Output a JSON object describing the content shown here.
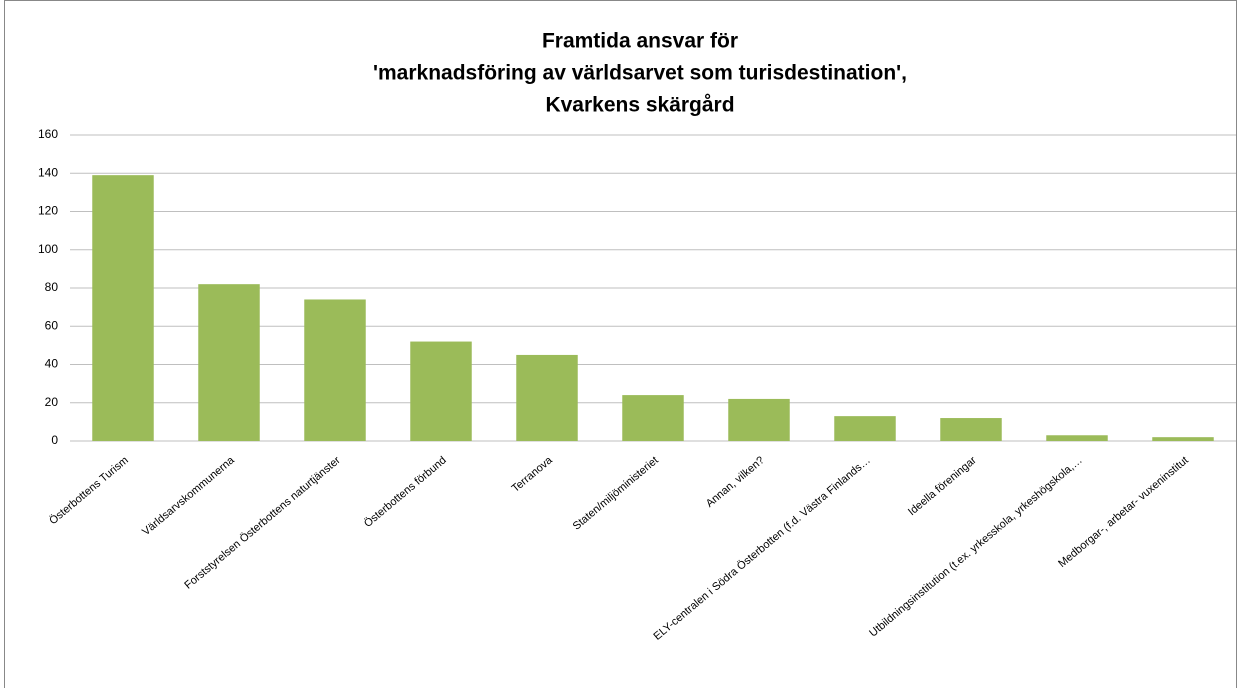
{
  "chart_data": {
    "type": "bar",
    "title": [
      "Framtida ansvar för",
      "'marknadsföring av världsarvet som turisdestination',",
      "Kvarkens skärgård"
    ],
    "categories": [
      "Österbottens Turism",
      "Världsarvskommunerna",
      "Forststyrelsen Österbottens naturtjänster",
      "Österbottens förbund",
      "Terranova",
      "Staten/miljöministeriet",
      "Annan, vilken?",
      "ELY-centralen i Södra Österbotten (f.d. Västra Finlands…",
      "Ideella föreningar",
      "Utbildningsinstitution (t.ex. yrkesskola, yrkeshögskola,…",
      "Medborgar-, arbetar- vuxeninstitut"
    ],
    "values": [
      139,
      82,
      74,
      52,
      45,
      24,
      22,
      13,
      12,
      3,
      2
    ],
    "color": "#9bbb59",
    "ylim": [
      0,
      160
    ],
    "yticks": [
      0,
      20,
      40,
      60,
      80,
      100,
      120,
      140,
      160
    ],
    "grid": true
  }
}
